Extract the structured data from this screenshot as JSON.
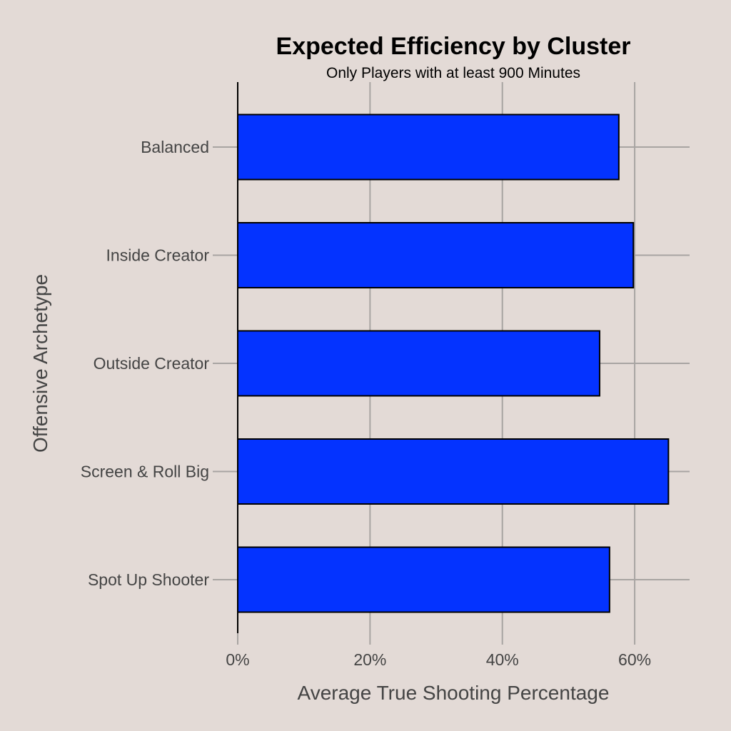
{
  "chart_data": {
    "type": "bar",
    "orientation": "horizontal",
    "title": "Expected Efficiency by Cluster",
    "subtitle": "Only Players with at least 900 Minutes",
    "xlabel": "Average True Shooting Percentage",
    "ylabel": "Offensive Archetype",
    "categories": [
      "Balanced",
      "Inside Creator",
      "Outside Creator",
      "Screen & Roll Big",
      "Spot Up Shooter"
    ],
    "values": [
      57.6,
      59.8,
      54.7,
      65.1,
      56.2
    ],
    "xlim": [
      0,
      68.3
    ],
    "xticks": [
      0,
      20,
      40,
      60
    ],
    "xtick_labels": [
      "0%",
      "20%",
      "40%",
      "60%"
    ],
    "grid": true,
    "legend": "none",
    "colors": {
      "bar": "#0433ff",
      "background": "#e3dad6",
      "grid": "#a8a4a2",
      "text": "#444444"
    }
  }
}
